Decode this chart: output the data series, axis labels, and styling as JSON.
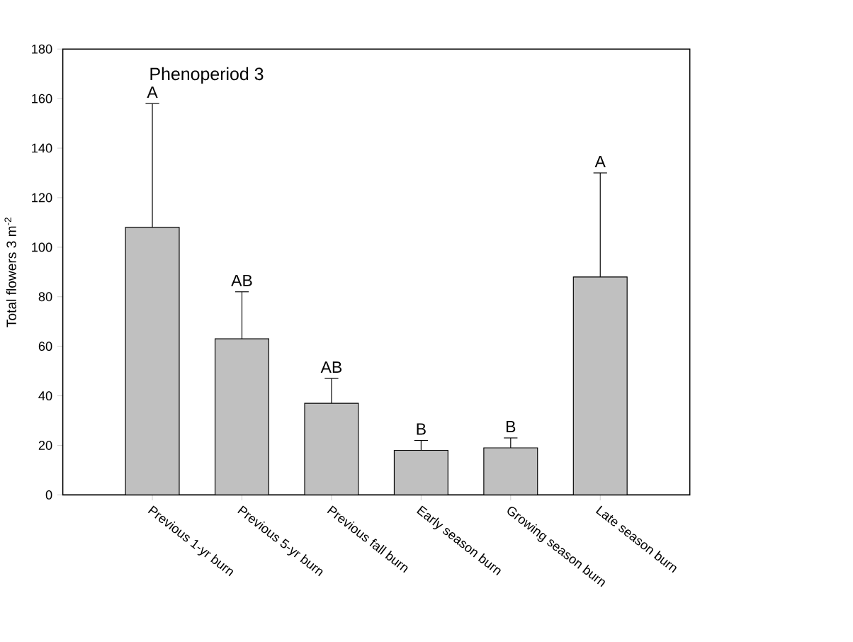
{
  "chart_data": {
    "type": "bar",
    "ylabel": "Total flowers 3 m$^{-2}$",
    "categories": [
      "Previous 1-yr burn",
      "Previous 5-yr burn",
      "Previous fall burn",
      "Early season burn",
      "Growing season burn",
      "Late season burn"
    ],
    "values": [
      108,
      63,
      37,
      18,
      19,
      88
    ],
    "errors": [
      [
        108,
        158
      ],
      [
        63,
        82
      ],
      [
        37,
        47
      ],
      [
        18,
        22
      ],
      [
        19,
        23
      ],
      [
        88,
        130
      ]
    ],
    "color": "#c0c0c0",
    "ylim": [
      0,
      180
    ],
    "yticks": [
      0,
      20,
      40,
      60,
      80,
      100,
      120,
      140,
      160,
      180
    ],
    "grid": false,
    "annotations": [
      "Phenoperiod 3",
      {
        "text": "A",
        "x": "Previous 1-yr burn",
        "y": 158
      },
      {
        "text": "AB",
        "x": "Previous 5-yr burn",
        "y": 82
      },
      {
        "text": "AB",
        "x": "Previous fall burn",
        "y": 47
      },
      {
        "text": "B",
        "x": "Early season burn",
        "y": 22
      },
      {
        "text": "B",
        "x": "Growing season burn",
        "y": 23
      },
      {
        "text": "A",
        "x": "Late season burn",
        "y": 130
      }
    ]
  }
}
